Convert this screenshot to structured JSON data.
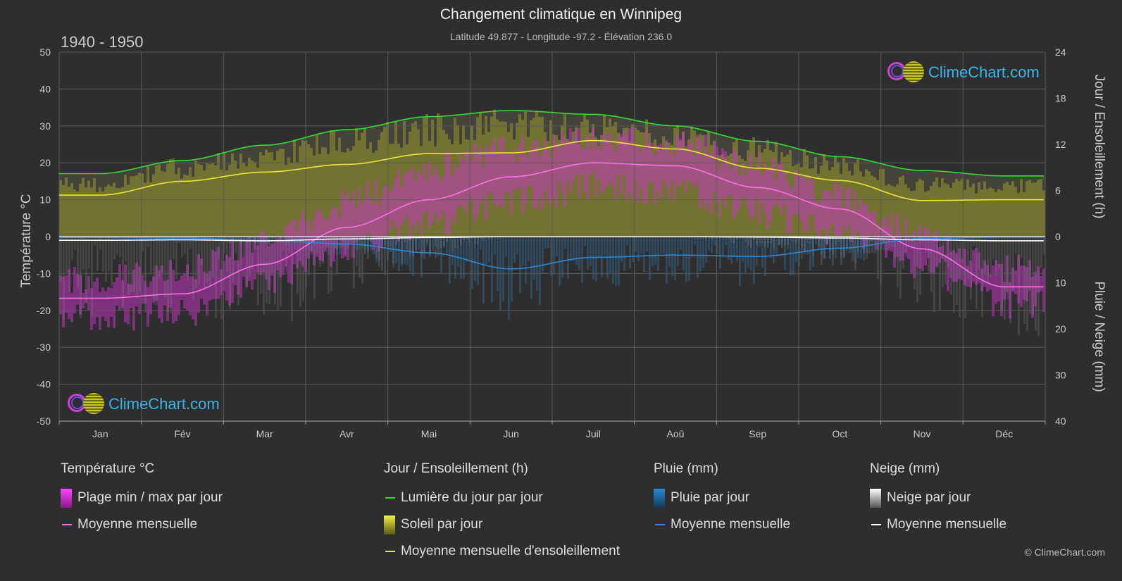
{
  "header": {
    "title": "Changement climatique en Winnipeg",
    "subtitle": "Latitude 49.877 - Longitude -97.2 - Élévation 236.0",
    "period": "1940 - 1950"
  },
  "axes": {
    "left_title": "Température °C",
    "right_top_title": "Jour / Ensoleillement (h)",
    "right_bottom_title": "Pluie / Neige (mm)"
  },
  "logo": {
    "text": "ClimeChart.com"
  },
  "copyright": "© ClimeChart.com",
  "legend": {
    "temperature": {
      "title": "Température °C",
      "range": "Plage min / max par jour",
      "mean": "Moyenne mensuelle"
    },
    "sun": {
      "title": "Jour / Ensoleillement (h)",
      "daylight": "Lumière du jour par jour",
      "sunshine": "Soleil par jour",
      "sun_mean": "Moyenne mensuelle d'ensoleillement"
    },
    "rain": {
      "title": "Pluie (mm)",
      "daily": "Pluie par jour",
      "mean": "Moyenne mensuelle"
    },
    "snow": {
      "title": "Neige (mm)",
      "daily": "Neige par jour",
      "mean": "Moyenne mensuelle"
    }
  },
  "colors": {
    "background": "#2e2e2e",
    "grid": "#5a5a5a",
    "daylight": "#33dd33",
    "sunshine_mean": "#e8e83a",
    "sunshine_fill": "#9a9a28",
    "temp_mean": "#ff6fe8",
    "temp_range": "#cc33cc",
    "rain": "#2a8ad8",
    "snow": "#cccccc",
    "snow_mean": "#ffffff"
  },
  "chart_data": {
    "type": "area",
    "categories": [
      "Jan",
      "Fév",
      "Mar",
      "Avr",
      "Mai",
      "Jun",
      "Juil",
      "Aoû",
      "Sep",
      "Oct",
      "Nov",
      "Déc"
    ],
    "y_left": {
      "label": "Température °C",
      "min": -50,
      "max": 50,
      "ticks": [
        50,
        40,
        30,
        20,
        10,
        0,
        -10,
        -20,
        -30,
        -40,
        -50
      ]
    },
    "y_right_top": {
      "label": "Jour / Ensoleillement (h)",
      "min": 0,
      "max": 24,
      "ticks": [
        24,
        18,
        12,
        6,
        0
      ]
    },
    "y_right_bottom": {
      "label": "Pluie / Neige (mm)",
      "min": 0,
      "max": 40,
      "ticks": [
        0,
        10,
        20,
        30,
        40
      ]
    },
    "series": [
      {
        "name": "Lumière du jour par jour",
        "unit": "h",
        "values": [
          8.2,
          9.9,
          11.9,
          13.9,
          15.6,
          16.4,
          15.9,
          14.4,
          12.4,
          10.4,
          8.6,
          7.9
        ]
      },
      {
        "name": "Soleil par jour",
        "unit": "h",
        "values": [
          7.0,
          9.2,
          10.8,
          12.8,
          14.3,
          15.0,
          14.4,
          13.6,
          11.6,
          9.6,
          7.0,
          6.7
        ]
      },
      {
        "name": "Moyenne mensuelle d'ensoleillement",
        "unit": "h",
        "values": [
          5.4,
          7.2,
          8.4,
          9.4,
          10.8,
          10.9,
          12.5,
          11.4,
          8.9,
          7.3,
          4.7,
          4.8
        ]
      },
      {
        "name": "Température moyenne mensuelle",
        "unit": "°C",
        "values": [
          -16.7,
          -15.5,
          -7.5,
          2.5,
          10.0,
          16.2,
          20.0,
          19.2,
          13.3,
          7.5,
          -3.3,
          -13.6
        ]
      },
      {
        "name": "Température max moyenne",
        "unit": "°C",
        "values": [
          -11.5,
          -9.5,
          -1.5,
          9.5,
          18.5,
          23.5,
          26.5,
          25.5,
          19.5,
          11.0,
          0.0,
          -8.5
        ]
      },
      {
        "name": "Température min moyenne",
        "unit": "°C",
        "values": [
          -22.0,
          -21.0,
          -13.5,
          -3.5,
          3.5,
          9.5,
          13.5,
          12.5,
          6.5,
          0.5,
          -8.5,
          -18.5
        ]
      },
      {
        "name": "Pluie moyenne mensuelle",
        "unit": "mm",
        "values": [
          0.2,
          0.3,
          0.8,
          1.6,
          3.5,
          7.0,
          4.5,
          4.0,
          4.3,
          2.5,
          0.4,
          0.1
        ]
      },
      {
        "name": "Neige moyenne mensuelle",
        "unit": "mm",
        "values": [
          0.8,
          0.7,
          0.9,
          0.5,
          0.2,
          0.0,
          0.0,
          0.0,
          0.1,
          0.3,
          0.7,
          0.9
        ]
      }
    ]
  }
}
